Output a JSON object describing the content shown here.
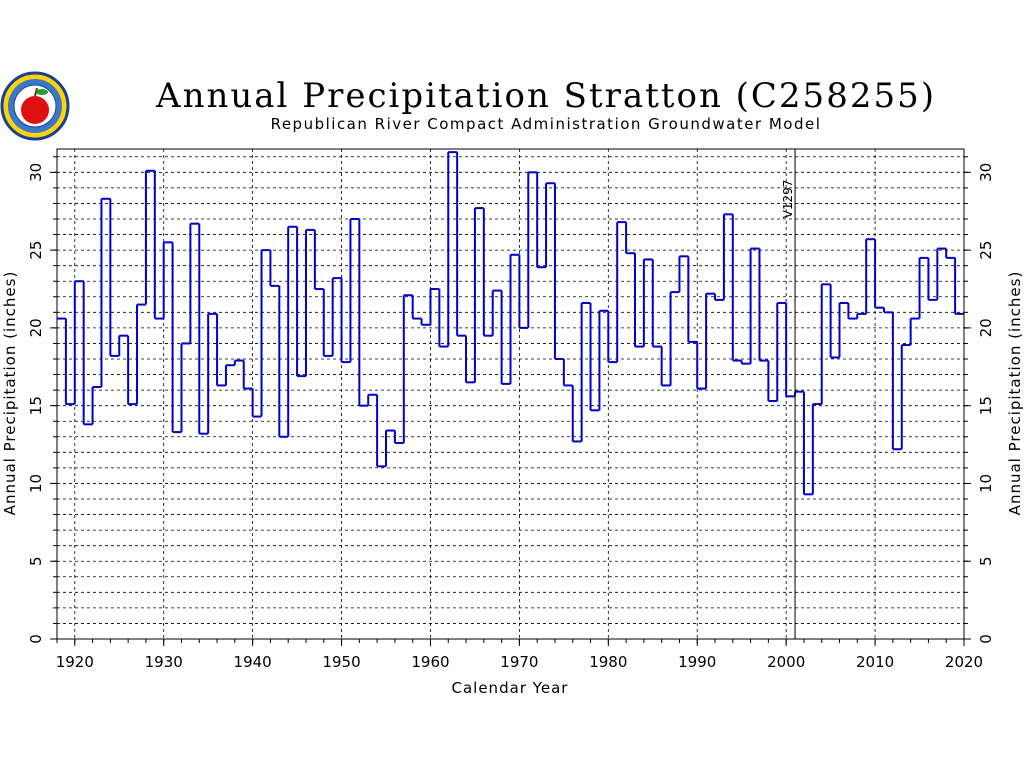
{
  "logo": {
    "icon": "apple-seal-logo"
  },
  "chart_data": {
    "type": "line",
    "step": true,
    "title": "Annual Precipitation Stratton (C258255)",
    "subtitle": "Republican River Compact Administration Groundwater Model",
    "xlabel": "Calendar Year",
    "ylabel": "Annual Precipitation (inches)",
    "ylabel_right": "Annual Precipitation (inches)",
    "xlim": [
      1918,
      2020
    ],
    "ylim": [
      0,
      31.5
    ],
    "xticks": [
      "1920",
      "1930",
      "1940",
      "1950",
      "1960",
      "1970",
      "1980",
      "1990",
      "2000",
      "2010",
      "2020"
    ],
    "yticks": [
      "0",
      "5",
      "10",
      "15",
      "20",
      "25",
      "30"
    ],
    "grid": true,
    "series_color": "#0000cc",
    "annotation": {
      "x": 2001,
      "label": "V1297"
    },
    "x": [
      1918,
      1919,
      1920,
      1921,
      1922,
      1923,
      1924,
      1925,
      1926,
      1927,
      1928,
      1929,
      1930,
      1931,
      1932,
      1933,
      1934,
      1935,
      1936,
      1937,
      1938,
      1939,
      1940,
      1941,
      1942,
      1943,
      1944,
      1945,
      1946,
      1947,
      1948,
      1949,
      1950,
      1951,
      1952,
      1953,
      1954,
      1955,
      1956,
      1957,
      1958,
      1959,
      1960,
      1961,
      1962,
      1963,
      1964,
      1965,
      1966,
      1967,
      1968,
      1969,
      1970,
      1971,
      1972,
      1973,
      1974,
      1975,
      1976,
      1977,
      1978,
      1979,
      1980,
      1981,
      1982,
      1983,
      1984,
      1985,
      1986,
      1987,
      1988,
      1989,
      1990,
      1991,
      1992,
      1993,
      1994,
      1995,
      1996,
      1997,
      1998,
      1999,
      2000,
      2001,
      2002,
      2003,
      2004,
      2005,
      2006,
      2007,
      2008,
      2009,
      2010,
      2011,
      2012,
      2013,
      2014,
      2015,
      2016,
      2017,
      2018,
      2019
    ],
    "values": [
      20.6,
      15.1,
      23.0,
      13.8,
      16.2,
      28.3,
      18.2,
      19.5,
      15.1,
      21.5,
      30.1,
      20.6,
      25.5,
      13.3,
      19.0,
      26.7,
      13.2,
      20.9,
      16.3,
      17.6,
      17.9,
      16.1,
      14.3,
      25.0,
      22.7,
      13.0,
      26.5,
      16.9,
      26.3,
      22.5,
      18.2,
      23.2,
      17.8,
      27.0,
      15.0,
      15.7,
      11.1,
      13.4,
      12.6,
      22.1,
      20.6,
      20.2,
      22.5,
      18.8,
      31.3,
      19.5,
      16.5,
      27.7,
      19.5,
      22.4,
      16.4,
      24.7,
      20.0,
      30.0,
      23.9,
      29.3,
      18.0,
      16.3,
      12.7,
      21.6,
      14.7,
      21.1,
      17.8,
      26.8,
      24.8,
      18.8,
      24.4,
      18.8,
      16.3,
      22.3,
      24.6,
      19.1,
      16.1,
      22.2,
      21.8,
      27.3,
      17.9,
      17.7,
      25.1,
      17.9,
      15.3,
      21.6,
      15.6,
      15.9,
      9.3,
      15.1,
      22.8,
      18.1,
      21.6,
      20.6,
      20.9,
      25.7,
      21.3,
      21.0,
      12.2,
      18.9,
      20.6,
      24.5,
      21.8,
      25.1,
      24.5,
      20.9
    ]
  }
}
